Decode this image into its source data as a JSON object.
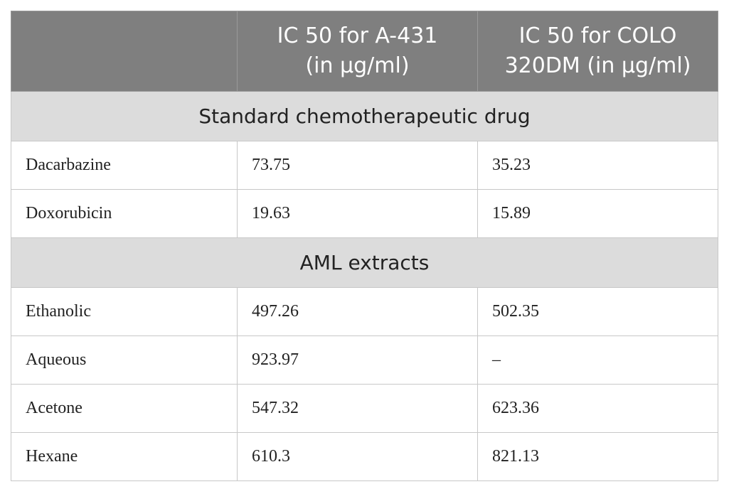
{
  "header": {
    "col1": "",
    "col2_line1": "IC 50 for A-431",
    "col2_line2": "(in µg/ml)",
    "col3_line1": "IC 50 for COLO",
    "col3_line2": "320DM (in µg/ml)"
  },
  "sections": [
    {
      "title": "Standard chemotherapeutic drug",
      "rows": [
        {
          "name": "Dacarbazine",
          "a431": "73.75",
          "colo": "35.23"
        },
        {
          "name": "Doxorubicin",
          "a431": "19.63",
          "colo": "15.89"
        }
      ]
    },
    {
      "title": "AML extracts",
      "rows": [
        {
          "name": "Ethanolic",
          "a431": "497.26",
          "colo": "502.35"
        },
        {
          "name": "Aqueous",
          "a431": "923.97",
          "colo": "–"
        },
        {
          "name": "Acetone",
          "a431": "547.32",
          "colo": "623.36"
        },
        {
          "name": "Hexane",
          "a431": "610.3",
          "colo": "821.13"
        }
      ]
    }
  ]
}
